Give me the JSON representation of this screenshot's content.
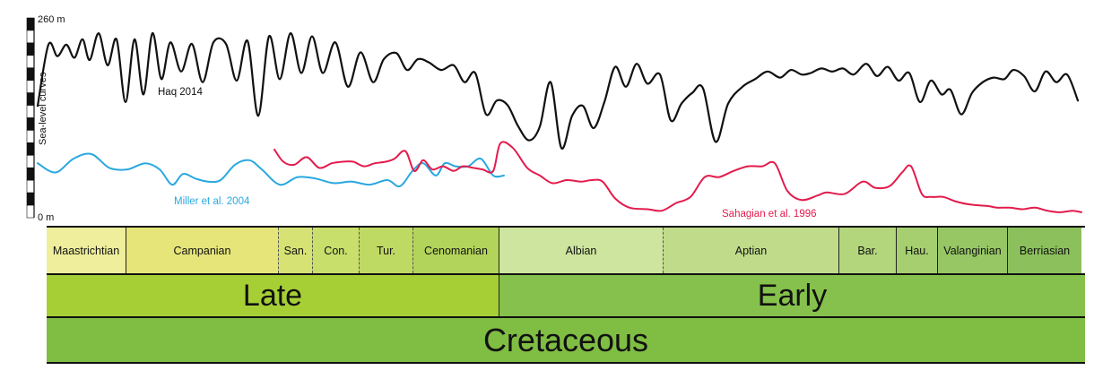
{
  "chart_data": {
    "type": "line",
    "ylabel": "Sea-level curves",
    "ylim": [
      0,
      260
    ],
    "y_tick_labels": [
      "260 m",
      "0 m"
    ],
    "x_reversed": true,
    "series": [
      {
        "name": "Haq 2014",
        "color": "#111111",
        "points": [
          [
            0,
            145
          ],
          [
            12,
            225
          ],
          [
            22,
            210
          ],
          [
            32,
            225
          ],
          [
            41,
            208
          ],
          [
            50,
            232
          ],
          [
            58,
            205
          ],
          [
            68,
            240
          ],
          [
            78,
            198
          ],
          [
            88,
            232
          ],
          [
            98,
            150
          ],
          [
            108,
            232
          ],
          [
            118,
            160
          ],
          [
            128,
            240
          ],
          [
            138,
            180
          ],
          [
            148,
            228
          ],
          [
            160,
            190
          ],
          [
            172,
            226
          ],
          [
            184,
            176
          ],
          [
            196,
            228
          ],
          [
            210,
            226
          ],
          [
            222,
            178
          ],
          [
            234,
            230
          ],
          [
            246,
            132
          ],
          [
            258,
            236
          ],
          [
            270,
            180
          ],
          [
            282,
            240
          ],
          [
            294,
            188
          ],
          [
            306,
            236
          ],
          [
            318,
            188
          ],
          [
            332,
            228
          ],
          [
            346,
            170
          ],
          [
            360,
            215
          ],
          [
            374,
            176
          ],
          [
            386,
            206
          ],
          [
            400,
            214
          ],
          [
            412,
            192
          ],
          [
            424,
            206
          ],
          [
            436,
            202
          ],
          [
            450,
            192
          ],
          [
            464,
            198
          ],
          [
            476,
            176
          ],
          [
            488,
            188
          ],
          [
            500,
            134
          ],
          [
            512,
            152
          ],
          [
            524,
            146
          ],
          [
            536,
            118
          ],
          [
            548,
            100
          ],
          [
            560,
            118
          ],
          [
            572,
            176
          ],
          [
            584,
            90
          ],
          [
            596,
            132
          ],
          [
            608,
            145
          ],
          [
            620,
            116
          ],
          [
            632,
            150
          ],
          [
            644,
            196
          ],
          [
            656,
            170
          ],
          [
            668,
            200
          ],
          [
            680,
            174
          ],
          [
            694,
            186
          ],
          [
            706,
            126
          ],
          [
            718,
            148
          ],
          [
            730,
            162
          ],
          [
            742,
            168
          ],
          [
            756,
            98
          ],
          [
            770,
            148
          ],
          [
            786,
            170
          ],
          [
            800,
            180
          ],
          [
            814,
            190
          ],
          [
            828,
            182
          ],
          [
            840,
            192
          ],
          [
            852,
            186
          ],
          [
            862,
            188
          ],
          [
            874,
            194
          ],
          [
            886,
            190
          ],
          [
            898,
            194
          ],
          [
            910,
            186
          ],
          [
            924,
            200
          ],
          [
            936,
            184
          ],
          [
            948,
            196
          ],
          [
            960,
            178
          ],
          [
            972,
            188
          ],
          [
            984,
            150
          ],
          [
            996,
            178
          ],
          [
            1008,
            160
          ],
          [
            1018,
            166
          ],
          [
            1030,
            134
          ],
          [
            1042,
            162
          ],
          [
            1054,
            176
          ],
          [
            1066,
            182
          ],
          [
            1078,
            180
          ],
          [
            1088,
            192
          ],
          [
            1100,
            184
          ],
          [
            1112,
            164
          ],
          [
            1124,
            190
          ],
          [
            1136,
            176
          ],
          [
            1148,
            186
          ],
          [
            1160,
            152
          ]
        ]
      },
      {
        "name": "Miller et al. 2004",
        "color": "#29a8df",
        "points": [
          [
            0,
            70
          ],
          [
            20,
            58
          ],
          [
            40,
            76
          ],
          [
            60,
            82
          ],
          [
            80,
            64
          ],
          [
            100,
            62
          ],
          [
            120,
            70
          ],
          [
            136,
            62
          ],
          [
            150,
            42
          ],
          [
            162,
            56
          ],
          [
            176,
            50
          ],
          [
            190,
            46
          ],
          [
            204,
            48
          ],
          [
            220,
            68
          ],
          [
            236,
            74
          ],
          [
            250,
            62
          ],
          [
            270,
            42
          ],
          [
            290,
            52
          ],
          [
            310,
            50
          ],
          [
            330,
            44
          ],
          [
            350,
            46
          ],
          [
            370,
            42
          ],
          [
            390,
            48
          ],
          [
            404,
            40
          ],
          [
            418,
            60
          ],
          [
            430,
            70
          ],
          [
            444,
            54
          ],
          [
            454,
            70
          ],
          [
            466,
            66
          ],
          [
            480,
            66
          ],
          [
            494,
            76
          ],
          [
            508,
            54
          ],
          [
            520,
            54
          ]
        ]
      },
      {
        "name": "Sahagian et al. 1996",
        "color": "#e31b4c",
        "points": [
          [
            264,
            88
          ],
          [
            274,
            72
          ],
          [
            286,
            68
          ],
          [
            300,
            78
          ],
          [
            314,
            64
          ],
          [
            328,
            70
          ],
          [
            340,
            72
          ],
          [
            352,
            72
          ],
          [
            364,
            66
          ],
          [
            376,
            70
          ],
          [
            388,
            72
          ],
          [
            398,
            76
          ],
          [
            410,
            86
          ],
          [
            420,
            60
          ],
          [
            430,
            74
          ],
          [
            440,
            62
          ],
          [
            452,
            66
          ],
          [
            464,
            60
          ],
          [
            474,
            66
          ],
          [
            486,
            64
          ],
          [
            496,
            62
          ],
          [
            508,
            60
          ],
          [
            516,
            96
          ],
          [
            530,
            90
          ],
          [
            546,
            64
          ],
          [
            560,
            54
          ],
          [
            574,
            44
          ],
          [
            590,
            48
          ],
          [
            606,
            46
          ],
          [
            618,
            48
          ],
          [
            630,
            46
          ],
          [
            644,
            24
          ],
          [
            660,
            12
          ],
          [
            680,
            10
          ],
          [
            696,
            8
          ],
          [
            712,
            18
          ],
          [
            728,
            26
          ],
          [
            744,
            52
          ],
          [
            760,
            52
          ],
          [
            776,
            60
          ],
          [
            792,
            66
          ],
          [
            808,
            66
          ],
          [
            822,
            70
          ],
          [
            836,
            34
          ],
          [
            852,
            22
          ],
          [
            870,
            28
          ],
          [
            880,
            32
          ],
          [
            900,
            30
          ],
          [
            920,
            46
          ],
          [
            934,
            38
          ],
          [
            950,
            40
          ],
          [
            964,
            58
          ],
          [
            974,
            66
          ],
          [
            986,
            30
          ],
          [
            996,
            26
          ],
          [
            1010,
            26
          ],
          [
            1024,
            20
          ],
          [
            1040,
            16
          ],
          [
            1060,
            14
          ],
          [
            1070,
            12
          ],
          [
            1084,
            12
          ],
          [
            1098,
            10
          ],
          [
            1112,
            12
          ],
          [
            1126,
            8
          ],
          [
            1140,
            6
          ],
          [
            1154,
            8
          ],
          [
            1164,
            6
          ]
        ]
      }
    ]
  },
  "series_labels": [
    "Haq 2014",
    "Miller et al. 2004",
    "Sahagian et al. 1996"
  ],
  "stages": [
    {
      "label": "Maastrichtian",
      "color": "#eeee9c"
    },
    {
      "label": "Campanian",
      "color": "#e5e57a"
    },
    {
      "label": "San.",
      "color": "#d6e374"
    },
    {
      "label": "Con.",
      "color": "#c9df6b"
    },
    {
      "label": "Tur.",
      "color": "#bfda63"
    },
    {
      "label": "Cenomanian",
      "color": "#b3d45a"
    },
    {
      "label": "Albian",
      "color": "#cde59e"
    },
    {
      "label": "Aptian",
      "color": "#c0dc8b"
    },
    {
      "label": "Bar.",
      "color": "#b3d67c"
    },
    {
      "label": "Hau.",
      "color": "#a6cf70"
    },
    {
      "label": "Valanginian",
      "color": "#97c765"
    },
    {
      "label": "Berriasian",
      "color": "#8bc05c"
    }
  ],
  "epochs": [
    {
      "label": "Late",
      "color": "#a6cf35"
    },
    {
      "label": "Early",
      "color": "#85c14c"
    }
  ],
  "period": {
    "label": "Cretaceous",
    "color": "#7fbd43"
  }
}
